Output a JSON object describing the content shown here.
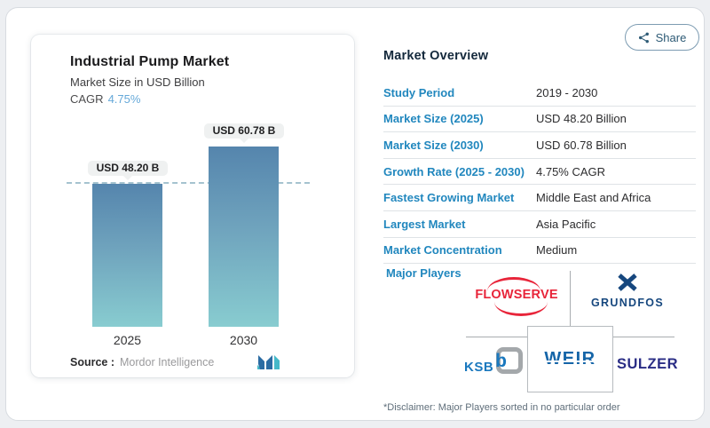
{
  "share_button": {
    "label": "Share"
  },
  "chart_card": {
    "title": "Industrial Pump Market",
    "subtitle": "Market Size in USD Billion",
    "cagr_label": "CAGR",
    "cagr_value": "4.75%",
    "source_label": "Source :",
    "source_name": "Mordor Intelligence",
    "logo": "mordor-intelligence-logo"
  },
  "chart_data": {
    "type": "bar",
    "categories": [
      "2025",
      "2030"
    ],
    "values": [
      48.2,
      60.78
    ],
    "bar_labels": [
      "USD 48.20 B",
      "USD 60.78 B"
    ],
    "title": "Industrial Pump Market",
    "ylabel": "Market Size in USD Billion",
    "unit": "USD Billion",
    "ylim": [
      0,
      65
    ],
    "grid": false,
    "legend": "none",
    "reference_line": {
      "value": 48.2,
      "style": "dashed",
      "color": "#a5c3cf"
    },
    "bar_gradient": {
      "top": "#5585ad",
      "bottom": "#88ccd0"
    }
  },
  "overview": {
    "title": "Market Overview",
    "rows": [
      {
        "label": "Study Period",
        "value": "2019 - 2030"
      },
      {
        "label": "Market Size (2025)",
        "value": "USD 48.20 Billion"
      },
      {
        "label": "Market Size (2030)",
        "value": "USD 60.78 Billion"
      },
      {
        "label": "Growth Rate (2025 - 2030)",
        "value": "4.75% CAGR"
      },
      {
        "label": "Fastest Growing Market",
        "value": "Middle East and Africa"
      },
      {
        "label": "Largest Market",
        "value": "Asia Pacific"
      },
      {
        "label": "Market Concentration",
        "value": "Medium"
      }
    ],
    "major_players_label": "Major Players",
    "players": [
      {
        "name": "FLOWSERVE",
        "color": "#e8253a"
      },
      {
        "name": "GRUNDFOS",
        "color": "#16477e"
      },
      {
        "name": "KSB",
        "color": "#1a78be",
        "icon_glyph": "b"
      },
      {
        "name": "WEIR",
        "color": "#1565a8"
      },
      {
        "name": "SULZER",
        "color": "#2a2d85"
      }
    ],
    "disclaimer": "*Disclaimer: Major Players sorted in no particular order"
  },
  "colors": {
    "accent_blue": "#2187be",
    "cagr_blue": "#66a9d9",
    "title_navy": "#14293c",
    "dashed_line": "#a5c3cf",
    "share_border": "#7d9cb2"
  }
}
